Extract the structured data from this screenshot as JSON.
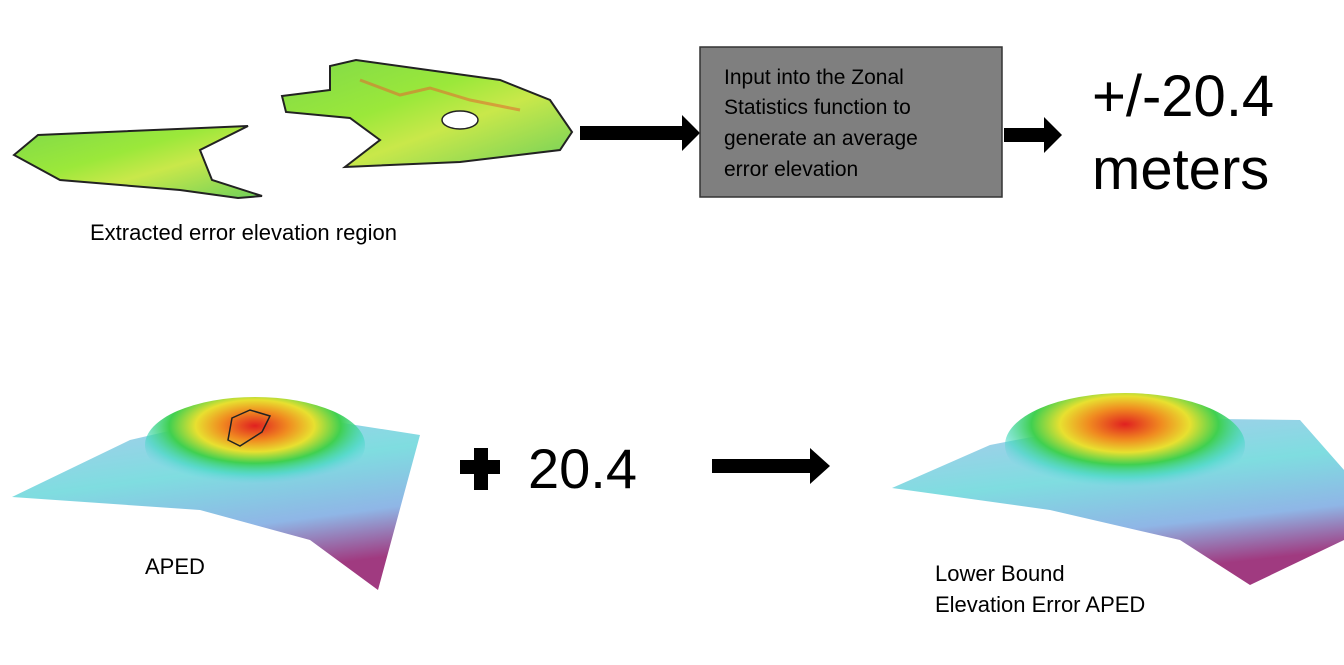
{
  "top_caption": "Extracted error elevation region",
  "process_box": {
    "lines": [
      "Input into the Zonal",
      "Statistics function to",
      "generate an average",
      "error elevation"
    ]
  },
  "result": {
    "lines": [
      "+/-20.4",
      "meters"
    ]
  },
  "addend": "20.4",
  "left_caption": "APED",
  "right_caption": {
    "lines": [
      "Lower Bound",
      "Elevation Error APED"
    ]
  }
}
